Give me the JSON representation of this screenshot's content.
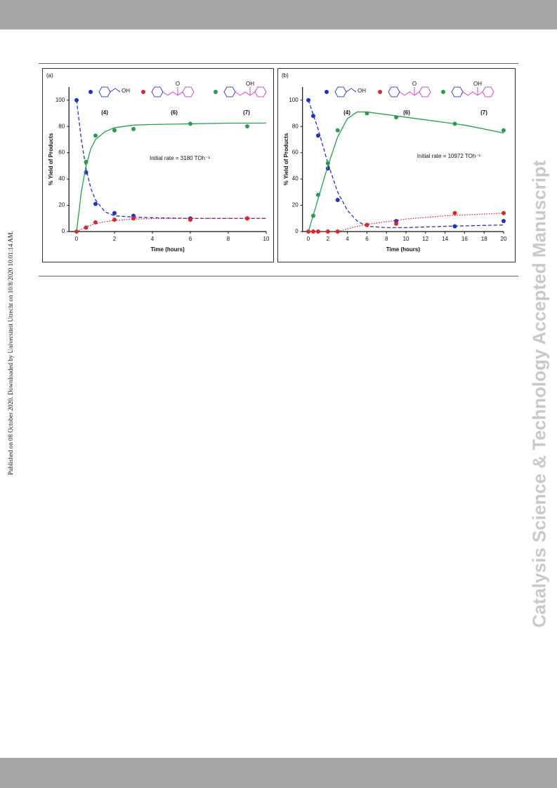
{
  "side_note": "Published on 08 October 2020. Downloaded by Universiteit Utrecht on 10/8/2020 10:01:14 AM.",
  "watermark": "Catalysis Science & Technology Accepted Manuscript",
  "chart_data": [
    {
      "type": "scatter",
      "panel_label": "(a)",
      "x_label": "Time (hours)",
      "y_label": "% Yield of Products",
      "annotation": "Initial rate = 3180 TOh⁻¹",
      "xlim": [
        -0.4,
        10
      ],
      "xticks": [
        0,
        2,
        4,
        6,
        8,
        10
      ],
      "ylim": [
        0,
        110
      ],
      "yticks": [
        0,
        20,
        40,
        60,
        80,
        100
      ],
      "series": [
        {
          "name": "(4)",
          "color": "#2233bb",
          "structure_label": "OH",
          "line_style": "dashed",
          "x": [
            0,
            0.5,
            1,
            2,
            3,
            6,
            9
          ],
          "values": [
            100,
            45,
            21,
            14,
            12,
            10,
            10
          ],
          "fit_x": [
            0,
            0.25,
            0.5,
            0.75,
            1,
            1.5,
            2,
            3,
            4,
            6,
            8,
            10
          ],
          "fit_values": [
            100,
            70,
            48,
            33,
            24,
            15,
            12,
            11,
            10.5,
            10,
            10,
            10
          ]
        },
        {
          "name": "(6)",
          "color": "#d9262f",
          "structure_label": "O",
          "line_style": "dotted",
          "x": [
            0,
            0.5,
            1,
            2,
            3,
            6,
            9
          ],
          "values": [
            0,
            3,
            7,
            9,
            10,
            9,
            10
          ],
          "fit_x": [
            0,
            0.5,
            1,
            1.5,
            2,
            3,
            4,
            6,
            10
          ],
          "fit_values": [
            0,
            3.5,
            6,
            7.5,
            8.5,
            9.5,
            9.8,
            10,
            10
          ]
        },
        {
          "name": "(7)",
          "color": "#2e9a4f",
          "structure_label": "OH",
          "line_style": "solid",
          "x": [
            0.5,
            1,
            2,
            3,
            6,
            9
          ],
          "values": [
            53,
            73,
            77,
            78,
            82,
            80
          ],
          "fit_x": [
            0,
            0.25,
            0.5,
            0.75,
            1,
            1.5,
            2,
            3,
            4,
            6,
            8,
            10
          ],
          "fit_values": [
            0,
            30,
            50,
            63,
            70,
            76,
            79,
            81,
            81.5,
            82,
            82.5,
            82.5
          ]
        }
      ]
    },
    {
      "type": "scatter",
      "panel_label": "(b)",
      "x_label": "Time (hours)",
      "y_label": "% Yield of Products",
      "annotation": "Initial rate = 10972 TOh⁻¹",
      "xlim": [
        -0.6,
        20
      ],
      "xticks": [
        0,
        2,
        4,
        6,
        8,
        10,
        12,
        14,
        16,
        18,
        20
      ],
      "ylim": [
        0,
        110
      ],
      "yticks": [
        0,
        20,
        40,
        60,
        80,
        100
      ],
      "series": [
        {
          "name": "(4)",
          "color": "#2233bb",
          "structure_label": "OH",
          "line_style": "dashed",
          "x": [
            0,
            0.5,
            1,
            2,
            3,
            6,
            9,
            15,
            20
          ],
          "values": [
            100,
            88,
            73,
            48,
            24,
            5,
            8,
            4,
            8
          ],
          "fit_x": [
            0,
            1,
            2,
            3,
            4,
            5,
            6,
            8,
            10,
            14,
            20
          ],
          "fit_values": [
            100,
            78,
            52,
            30,
            16,
            8,
            4,
            3,
            3,
            4,
            5
          ]
        },
        {
          "name": "(6)",
          "color": "#d9262f",
          "structure_label": "O",
          "line_style": "dotted",
          "x": [
            0,
            0.5,
            1,
            2,
            3,
            6,
            9,
            15,
            20
          ],
          "values": [
            0,
            0,
            0,
            0,
            0,
            5,
            6,
            14,
            14
          ],
          "fit_x": [
            0,
            3,
            4,
            5,
            6,
            8,
            10,
            14,
            20
          ],
          "fit_values": [
            0,
            0,
            2,
            4,
            5.5,
            7.5,
            9.5,
            12,
            14
          ]
        },
        {
          "name": "(7)",
          "color": "#2e9a4f",
          "structure_label": "OH",
          "line_style": "solid",
          "x": [
            0.5,
            1,
            2,
            3,
            6,
            9,
            15,
            20
          ],
          "values": [
            12,
            28,
            52,
            77,
            90,
            87,
            82,
            77
          ],
          "fit_x": [
            0,
            1,
            2,
            3,
            4,
            5,
            6,
            8,
            12,
            16,
            20
          ],
          "fit_values": [
            0,
            25,
            50,
            72,
            86,
            91,
            91,
            89,
            85,
            81,
            75
          ]
        }
      ]
    }
  ]
}
